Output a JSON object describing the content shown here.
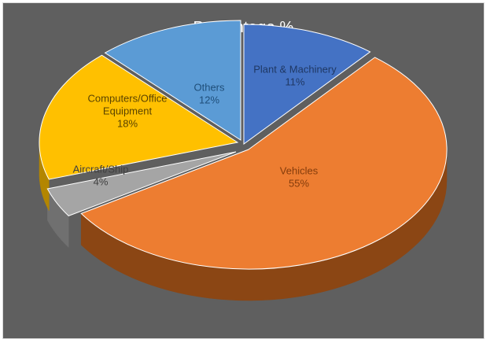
{
  "chart_data": {
    "type": "pie",
    "title": "Percentage %",
    "style": "3d-exploded-view",
    "slices": [
      {
        "label": "Plant & Machinery",
        "value": 11,
        "value_label": "11%",
        "color": "#4472c4",
        "side_color": "#2f5597",
        "label_color": "#1f3864"
      },
      {
        "label": "Vehicles",
        "value": 55,
        "value_label": "55%",
        "color": "#ed7d31",
        "side_color": "#8b4614",
        "label_color": "#843c0c"
      },
      {
        "label": "Aircraft/Ship",
        "value": 4,
        "value_label": "4%",
        "color": "#a5a5a5",
        "side_color": "#707070",
        "label_color": "#404040"
      },
      {
        "label": "Computers/Office\nEquipment",
        "value": 18,
        "value_label": "18%",
        "color": "#ffc000",
        "side_color": "#b38600",
        "label_color": "#5a4300"
      },
      {
        "label": "Others",
        "value": 12,
        "value_label": "12%",
        "color": "#5b9bd5",
        "side_color": "#2e75b6",
        "label_color": "#1f4e79"
      }
    ]
  },
  "colors": {
    "background": "#5f5f5f",
    "title": "#ffffff"
  }
}
